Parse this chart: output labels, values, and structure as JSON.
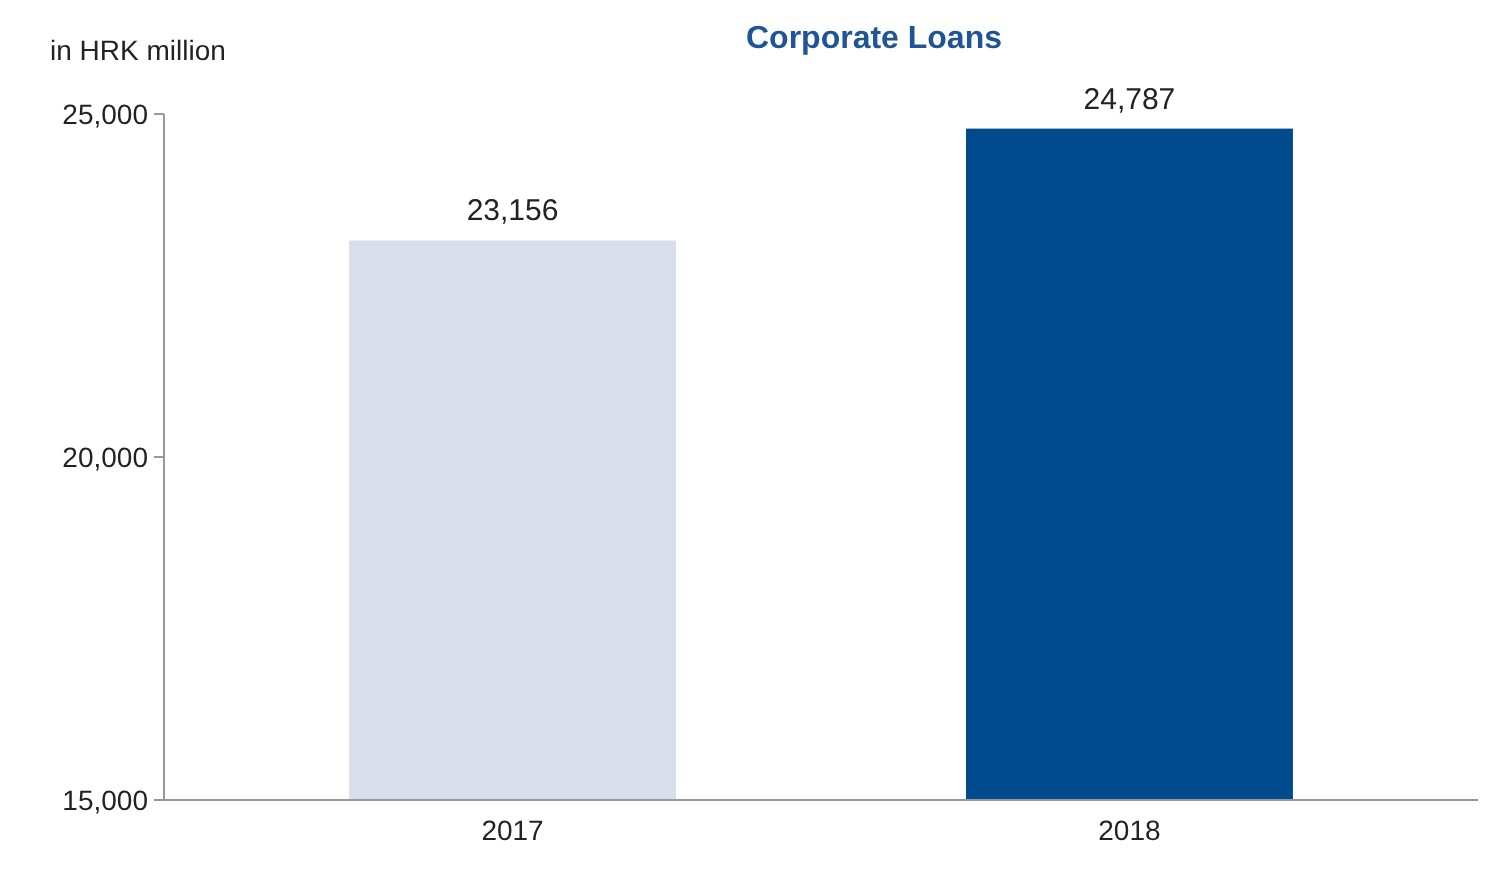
{
  "chart_data": {
    "type": "bar",
    "title": "Corporate Loans",
    "ylabel": "in HRK million",
    "categories": [
      "2017",
      "2018"
    ],
    "values": [
      23156,
      24787
    ],
    "colors": [
      "#d9deeb",
      "#004b8d"
    ],
    "value_labels": [
      "23,156",
      "24,787"
    ],
    "ylim": [
      15000,
      25000
    ],
    "yticks": [
      {
        "value": 15000,
        "label": "15,000"
      },
      {
        "value": 20000,
        "label": "20,000"
      },
      {
        "value": 25000,
        "label": "25,000"
      }
    ],
    "grid": false
  }
}
